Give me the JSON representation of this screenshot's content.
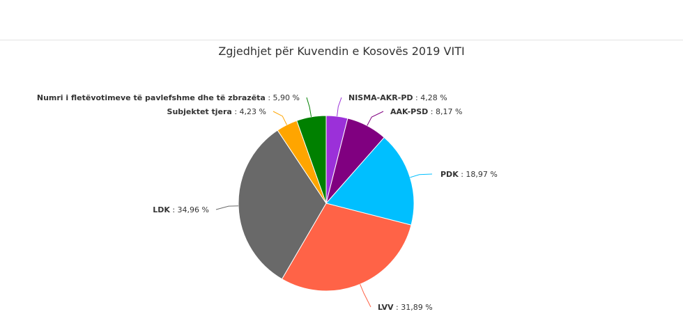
{
  "chart_data": {
    "type": "pie",
    "title": "Zgjedhjet për Kuvendin e Kosovës 2019 VITI",
    "slices": [
      {
        "name": "NISMA-AKR-PD",
        "value": 4.28,
        "label": "4,28 %",
        "color": "#9b30d9"
      },
      {
        "name": "AAK-PSD",
        "value": 8.17,
        "label": "8,17 %",
        "color": "#800080"
      },
      {
        "name": "PDK",
        "value": 18.97,
        "label": "18,97 %",
        "color": "#00bfff"
      },
      {
        "name": "LVV",
        "value": 31.89,
        "label": "31,89 %",
        "color": "#ff6347"
      },
      {
        "name": "LDK",
        "value": 34.96,
        "label": "34,96 %",
        "color": "#696969"
      },
      {
        "name": "Subjektet tjera",
        "value": 4.23,
        "label": "4,23 %",
        "color": "#ffa500"
      },
      {
        "name": "Numri i fletëvotimeve të pavlefshme dhe të zbrazëta",
        "value": 5.9,
        "label": "5,90 %",
        "color": "#008000"
      }
    ]
  }
}
